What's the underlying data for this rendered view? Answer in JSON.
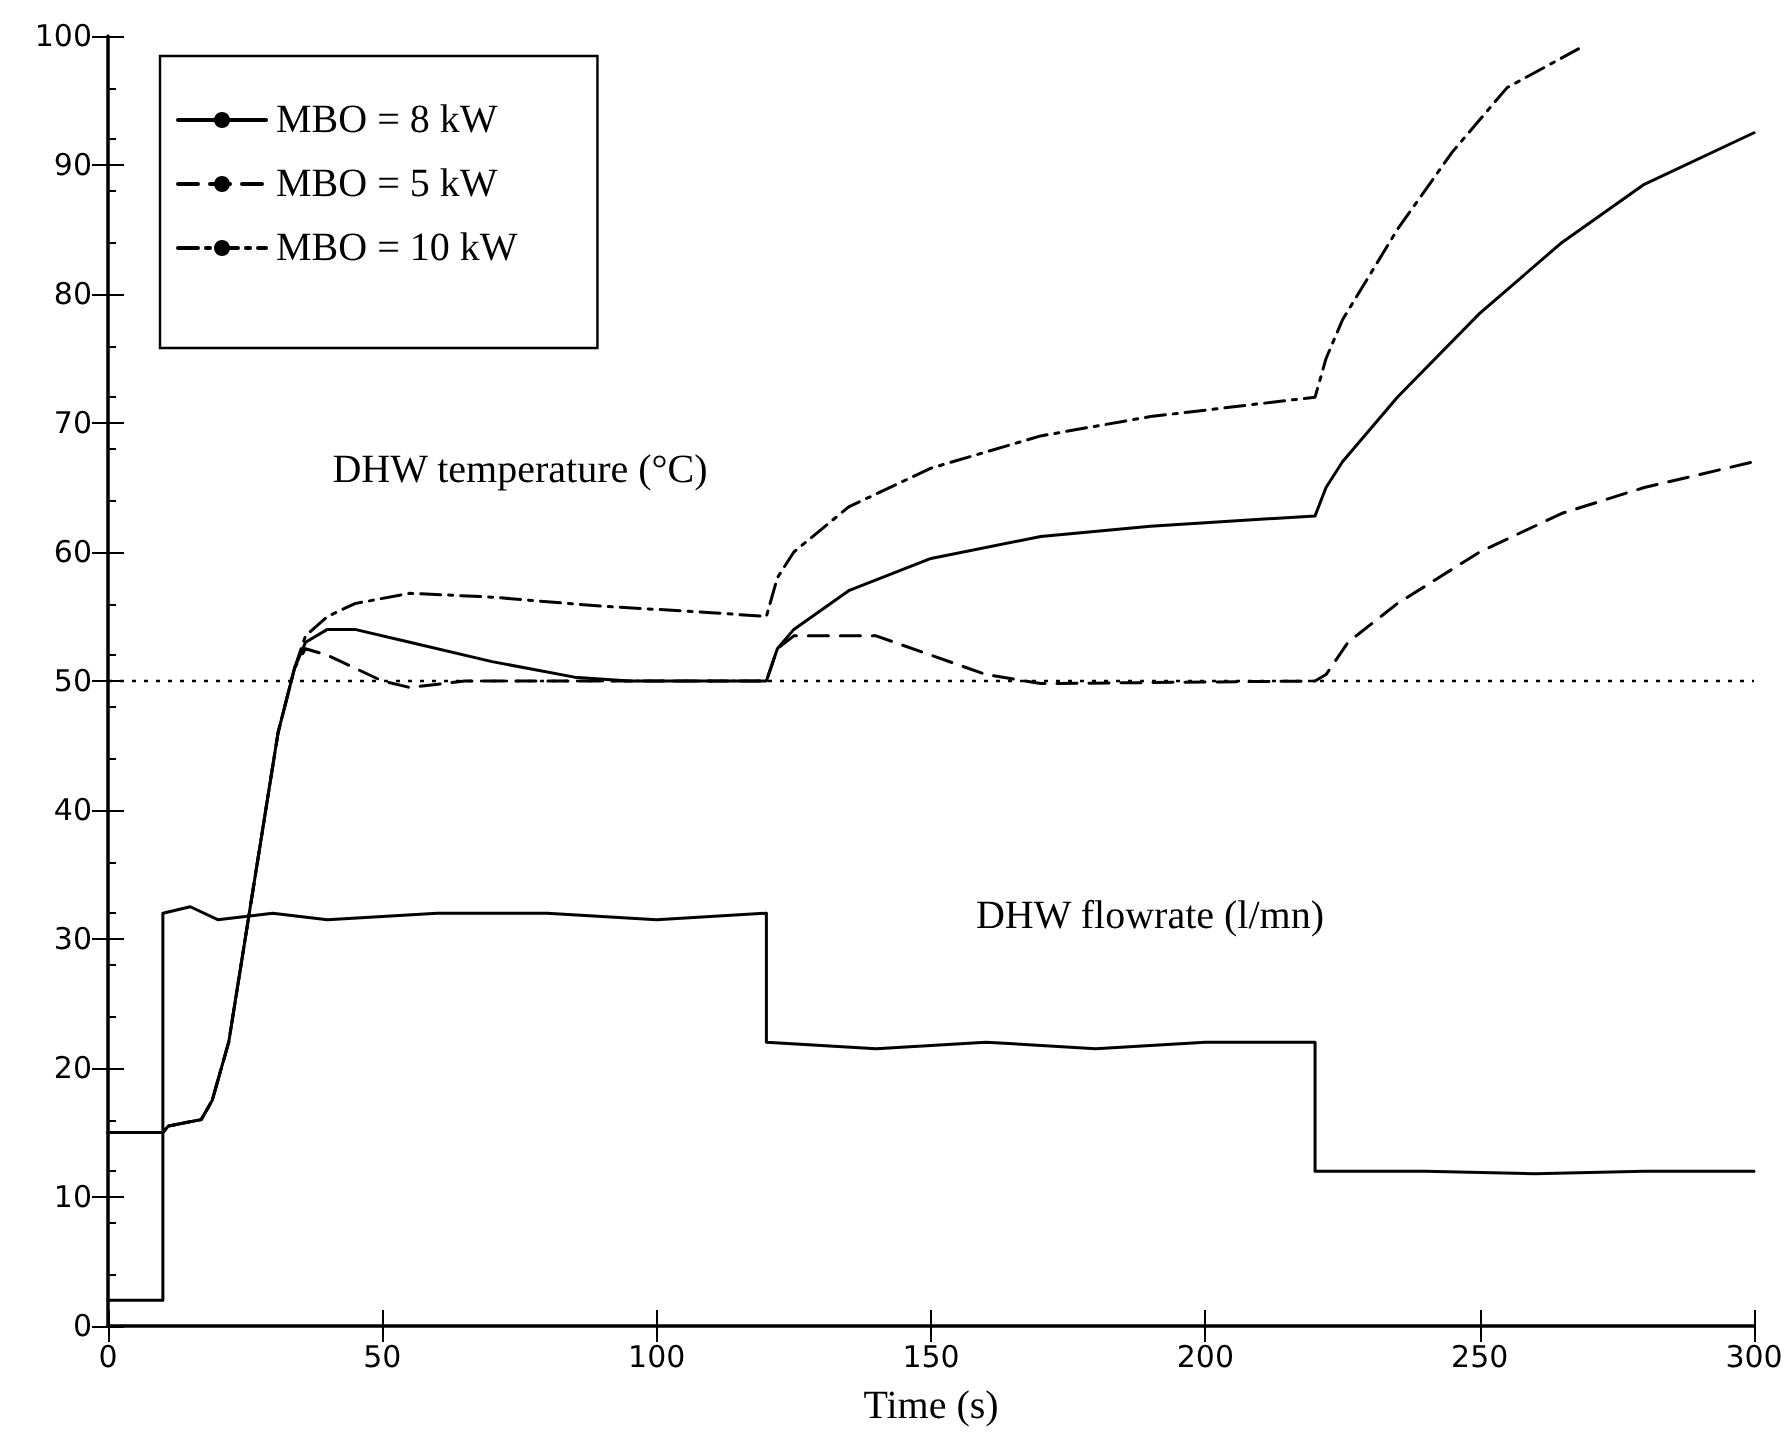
{
  "chart_data": {
    "type": "line",
    "xlabel": "Time (s)",
    "annotations": [
      "DHW temperature (°C)",
      "DHW flowrate (l/mn)"
    ],
    "xlim": [
      0,
      300
    ],
    "xticks": [
      0,
      50,
      100,
      150,
      200,
      250,
      300
    ],
    "ylim": [
      0,
      100
    ],
    "yticks": [
      0,
      10,
      20,
      30,
      40,
      50,
      60,
      70,
      80,
      90,
      100
    ],
    "grid": false,
    "legend": "top left",
    "marker": "none",
    "ref_lines": [
      {
        "axis": "y",
        "value": 50,
        "color": "#000000",
        "line_style": "dotted"
      }
    ],
    "series": [
      {
        "name": "MBO = 8 kW",
        "color": "#000000",
        "line_style": "solid",
        "x": [
          0,
          10,
          11,
          17,
          19,
          22,
          25,
          28,
          31,
          34,
          36,
          40,
          45,
          55,
          70,
          85,
          95,
          120,
          122,
          125,
          135,
          150,
          170,
          190,
          220,
          222,
          225,
          235,
          250,
          265,
          280,
          300
        ],
        "values": [
          15,
          15,
          15.5,
          16,
          17.5,
          22,
          30,
          38,
          46,
          51,
          53,
          54,
          54,
          53,
          51.5,
          50.3,
          50,
          50,
          52.5,
          54,
          57,
          59.5,
          61.2,
          62,
          62.8,
          65,
          67,
          72,
          78.5,
          84,
          88.5,
          92.5
        ]
      },
      {
        "name": "MBO = 5 kW",
        "color": "#000000",
        "line_style": "dashed",
        "x": [
          0,
          10,
          11,
          17,
          19,
          22,
          25,
          28,
          31,
          34,
          36,
          40,
          45,
          50,
          55,
          65,
          120,
          122,
          125,
          140,
          150,
          160,
          170,
          220,
          222,
          226,
          235,
          250,
          265,
          280,
          300
        ],
        "values": [
          15,
          15,
          15.5,
          16,
          17.5,
          22,
          30,
          38,
          46,
          51,
          52.5,
          52,
          51,
          50,
          49.5,
          50,
          50,
          52.5,
          53.5,
          53.5,
          52,
          50.5,
          49.8,
          50,
          50.5,
          53,
          56,
          60,
          63,
          65,
          67
        ]
      },
      {
        "name": "MBO = 10 kW",
        "color": "#000000",
        "line_style": "dashdot",
        "x": [
          0,
          10,
          11,
          17,
          19,
          22,
          25,
          28,
          31,
          34,
          36,
          40,
          45,
          55,
          70,
          90,
          110,
          120,
          122,
          125,
          135,
          150,
          170,
          190,
          220,
          222,
          225,
          235,
          245,
          255,
          268
        ],
        "values": [
          15,
          15,
          15.5,
          16,
          17.5,
          22,
          30,
          38,
          46,
          51,
          53.5,
          55,
          56,
          56.8,
          56.5,
          55.8,
          55.3,
          55,
          58,
          60,
          63.5,
          66.5,
          69,
          70.5,
          72,
          75,
          78,
          85,
          91,
          96,
          99
        ]
      },
      {
        "color": "#000000",
        "line_style": "solid",
        "x": [
          0,
          10,
          10,
          15,
          20,
          30,
          40,
          60,
          80,
          100,
          120,
          120,
          140,
          160,
          180,
          200,
          220,
          220,
          240,
          260,
          280,
          300
        ],
        "values": [
          2,
          2,
          32,
          32.5,
          31.5,
          32,
          31.5,
          32,
          32,
          31.5,
          32,
          22,
          21.5,
          22,
          21.5,
          22,
          22,
          12,
          12,
          11.8,
          12,
          12
        ]
      }
    ]
  }
}
